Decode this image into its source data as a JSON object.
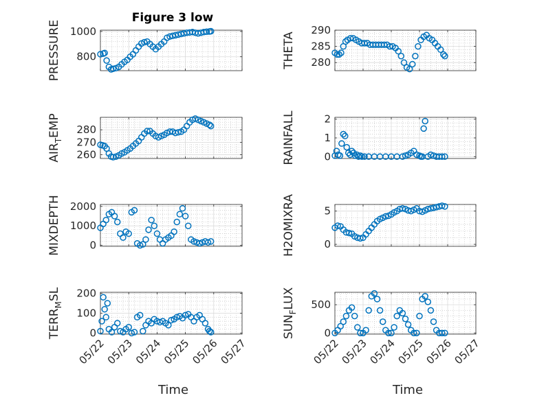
{
  "figure": {
    "title": "Figure 3 low",
    "marker_color": "#0072BD",
    "x_axis_label": "Time",
    "x_tick_labels": [
      "05/22",
      "05/23",
      "05/24",
      "05/25",
      "05/26",
      "05/27"
    ],
    "grid": "minor-dotted"
  },
  "chart_data": [
    {
      "type": "scatter",
      "name": "PRESSURE",
      "ylabel": "PRESSURE",
      "ylim": [
        690,
        1010
      ],
      "yticks": [
        800,
        1000
      ],
      "xlim": [
        0,
        5
      ],
      "x": [
        0.0,
        0.1,
        0.15,
        0.22,
        0.3,
        0.38,
        0.45,
        0.55,
        0.65,
        0.75,
        0.85,
        0.95,
        1.05,
        1.15,
        1.25,
        1.35,
        1.45,
        1.55,
        1.65,
        1.75,
        1.85,
        1.95,
        2.05,
        2.15,
        2.25,
        2.35,
        2.45,
        2.55,
        2.65,
        2.75,
        2.85,
        2.95,
        3.05,
        3.15,
        3.25,
        3.35,
        3.45,
        3.55,
        3.65,
        3.75,
        3.85,
        3.9
      ],
      "y": [
        820,
        825,
        830,
        770,
        720,
        700,
        705,
        710,
        720,
        740,
        760,
        775,
        800,
        820,
        850,
        880,
        905,
        915,
        920,
        900,
        880,
        860,
        880,
        900,
        920,
        950,
        960,
        965,
        970,
        975,
        980,
        985,
        990,
        992,
        995,
        990,
        985,
        990,
        995,
        998,
        1000,
        1002
      ]
    },
    {
      "type": "scatter",
      "name": "THETA",
      "ylabel": "THETA",
      "ylim": [
        277.5,
        290
      ],
      "yticks": [
        280,
        285,
        290
      ],
      "xlim": [
        0,
        5
      ],
      "x": [
        0.0,
        0.08,
        0.15,
        0.22,
        0.3,
        0.38,
        0.45,
        0.55,
        0.65,
        0.75,
        0.85,
        0.95,
        1.05,
        1.15,
        1.25,
        1.35,
        1.45,
        1.55,
        1.65,
        1.75,
        1.85,
        1.95,
        2.05,
        2.15,
        2.25,
        2.35,
        2.45,
        2.55,
        2.65,
        2.75,
        2.85,
        2.95,
        3.05,
        3.15,
        3.25,
        3.35,
        3.45,
        3.55,
        3.65,
        3.75,
        3.85,
        3.9
      ],
      "y": [
        283,
        282.5,
        282.5,
        283,
        285,
        286.5,
        287,
        287.5,
        287.5,
        287,
        286.5,
        286,
        286,
        286,
        285.5,
        285.5,
        285.5,
        285.5,
        285.5,
        285.5,
        285.5,
        285,
        285,
        284.5,
        283.5,
        282,
        280,
        278.5,
        278,
        279.5,
        282,
        285,
        287,
        288,
        288.5,
        287.5,
        287,
        286,
        285,
        284,
        282.5,
        282
      ]
    },
    {
      "type": "scatter",
      "name": "AIR_TEMP",
      "ylabel": "AIR_TEMP",
      "ylim": [
        257,
        290
      ],
      "yticks": [
        260,
        270,
        280
      ],
      "xlim": [
        0,
        5
      ],
      "x": [
        0.0,
        0.08,
        0.15,
        0.22,
        0.3,
        0.38,
        0.45,
        0.55,
        0.65,
        0.75,
        0.85,
        0.95,
        1.05,
        1.15,
        1.25,
        1.35,
        1.45,
        1.55,
        1.65,
        1.75,
        1.85,
        1.95,
        2.05,
        2.15,
        2.25,
        2.35,
        2.45,
        2.55,
        2.65,
        2.75,
        2.85,
        2.95,
        3.05,
        3.15,
        3.25,
        3.35,
        3.45,
        3.55,
        3.65,
        3.75,
        3.85,
        3.9
      ],
      "y": [
        268,
        267.5,
        267,
        265,
        261,
        258.5,
        258,
        258.5,
        259.5,
        261,
        262,
        263.5,
        265,
        267,
        269,
        271,
        274,
        277,
        279,
        279,
        277,
        275,
        274,
        275,
        276,
        277.5,
        278.5,
        278.5,
        277.5,
        278,
        278.5,
        280,
        283,
        286,
        288,
        289,
        288,
        287,
        286,
        285,
        284,
        283
      ]
    },
    {
      "type": "scatter",
      "name": "RAINFALL",
      "ylabel": "RAINFALL",
      "ylim": [
        -0.1,
        2.1
      ],
      "yticks": [
        0,
        1,
        2
      ],
      "xlim": [
        0,
        5
      ],
      "x": [
        0.0,
        0.06,
        0.12,
        0.18,
        0.24,
        0.3,
        0.36,
        0.42,
        0.48,
        0.54,
        0.6,
        0.66,
        0.72,
        0.78,
        0.84,
        0.9,
        0.96,
        1.05,
        1.2,
        1.4,
        1.6,
        1.8,
        2.0,
        2.2,
        2.4,
        2.5,
        2.6,
        2.7,
        2.8,
        2.9,
        3.0,
        3.05,
        3.1,
        3.15,
        3.2,
        3.3,
        3.4,
        3.5,
        3.6,
        3.7,
        3.8,
        3.9
      ],
      "y": [
        0.05,
        0.3,
        0.1,
        0.05,
        0.7,
        1.2,
        1.1,
        0.5,
        0.2,
        0.1,
        0.3,
        0.2,
        0.05,
        0.1,
        0,
        0.05,
        0,
        0,
        0,
        0,
        0,
        0,
        0,
        0,
        0,
        0.05,
        0.1,
        0.2,
        0.3,
        0.1,
        0.05,
        0,
        0,
        1.5,
        1.9,
        0,
        0.1,
        0.05,
        0,
        0,
        0,
        0
      ]
    },
    {
      "type": "scatter",
      "name": "MIXDEPTH",
      "ylabel": "MIXDEPTH",
      "ylim": [
        -50,
        2100
      ],
      "yticks": [
        0,
        1000,
        2000
      ],
      "xlim": [
        0,
        5
      ],
      "x": [
        0.0,
        0.1,
        0.2,
        0.3,
        0.4,
        0.5,
        0.6,
        0.7,
        0.8,
        0.9,
        1.0,
        1.1,
        1.2,
        1.3,
        1.4,
        1.5,
        1.6,
        1.7,
        1.8,
        1.9,
        2.0,
        2.1,
        2.2,
        2.3,
        2.4,
        2.5,
        2.6,
        2.7,
        2.8,
        2.9,
        3.0,
        3.1,
        3.2,
        3.3,
        3.4,
        3.5,
        3.6,
        3.7,
        3.8,
        3.9
      ],
      "y": [
        900,
        1100,
        1300,
        1600,
        1700,
        1500,
        1200,
        600,
        400,
        700,
        600,
        1700,
        1800,
        100,
        0,
        50,
        300,
        800,
        1300,
        1000,
        600,
        300,
        100,
        300,
        400,
        500,
        700,
        1200,
        1600,
        1900,
        1500,
        1000,
        300,
        200,
        150,
        100,
        150,
        200,
        150,
        200
      ]
    },
    {
      "type": "scatter",
      "name": "H2OMIXRA",
      "ylabel": "H2OMIXRA",
      "ylim": [
        -0.3,
        6
      ],
      "yticks": [
        0,
        5
      ],
      "xlim": [
        0,
        5
      ],
      "x": [
        0.0,
        0.1,
        0.2,
        0.3,
        0.4,
        0.5,
        0.6,
        0.7,
        0.8,
        0.9,
        1.0,
        1.1,
        1.2,
        1.3,
        1.4,
        1.5,
        1.6,
        1.7,
        1.8,
        1.9,
        2.0,
        2.1,
        2.2,
        2.3,
        2.4,
        2.5,
        2.6,
        2.7,
        2.8,
        2.9,
        3.0,
        3.1,
        3.2,
        3.3,
        3.4,
        3.5,
        3.6,
        3.7,
        3.8,
        3.9
      ],
      "y": [
        2.5,
        2.8,
        2.7,
        2.2,
        1.8,
        1.7,
        1.6,
        1.2,
        1.0,
        0.9,
        1.0,
        1.5,
        2.0,
        2.5,
        3.0,
        3.5,
        3.8,
        4.0,
        4.2,
        4.3,
        4.5,
        4.8,
        5.0,
        5.3,
        5.4,
        5.3,
        5.1,
        5.0,
        5.2,
        5.4,
        5.0,
        4.9,
        5.1,
        5.3,
        5.4,
        5.5,
        5.6,
        5.7,
        5.8,
        5.7
      ]
    },
    {
      "type": "scatter",
      "name": "TERR_MSL",
      "ylabel": "TERR_MSL",
      "ylim": [
        -5,
        205
      ],
      "yticks": [
        0,
        100,
        200
      ],
      "xlim": [
        0,
        5
      ],
      "x": [
        0.0,
        0.05,
        0.1,
        0.15,
        0.2,
        0.25,
        0.3,
        0.4,
        0.5,
        0.6,
        0.7,
        0.8,
        0.9,
        1.0,
        1.1,
        1.2,
        1.3,
        1.4,
        1.5,
        1.6,
        1.7,
        1.8,
        1.9,
        2.0,
        2.1,
        2.2,
        2.3,
        2.4,
        2.5,
        2.6,
        2.7,
        2.8,
        2.9,
        3.0,
        3.1,
        3.2,
        3.3,
        3.4,
        3.5,
        3.6,
        3.7,
        3.8,
        3.85,
        3.9
      ],
      "y": [
        10,
        60,
        180,
        120,
        80,
        150,
        20,
        5,
        30,
        50,
        10,
        5,
        20,
        30,
        0,
        5,
        80,
        90,
        10,
        40,
        60,
        50,
        70,
        60,
        55,
        60,
        50,
        40,
        65,
        70,
        80,
        85,
        75,
        90,
        95,
        80,
        60,
        80,
        90,
        70,
        50,
        20,
        10,
        5
      ]
    },
    {
      "type": "scatter",
      "name": "SUN_FLUX",
      "ylabel": "SUN_FLUX",
      "ylim": [
        -20,
        720
      ],
      "yticks": [
        0,
        500
      ],
      "xlim": [
        0,
        5
      ],
      "x": [
        0.0,
        0.1,
        0.2,
        0.3,
        0.4,
        0.5,
        0.6,
        0.7,
        0.8,
        0.9,
        1.0,
        1.1,
        1.2,
        1.3,
        1.4,
        1.5,
        1.6,
        1.7,
        1.8,
        1.9,
        2.0,
        2.1,
        2.2,
        2.3,
        2.4,
        2.5,
        2.6,
        2.7,
        2.8,
        2.9,
        3.0,
        3.1,
        3.2,
        3.3,
        3.4,
        3.5,
        3.6,
        3.7,
        3.8,
        3.9
      ],
      "y": [
        0,
        50,
        120,
        200,
        300,
        400,
        450,
        300,
        100,
        0,
        0,
        50,
        400,
        650,
        700,
        600,
        400,
        200,
        50,
        0,
        0,
        100,
        300,
        400,
        350,
        250,
        150,
        50,
        0,
        0,
        300,
        600,
        650,
        550,
        400,
        200,
        50,
        0,
        0,
        0
      ]
    }
  ]
}
